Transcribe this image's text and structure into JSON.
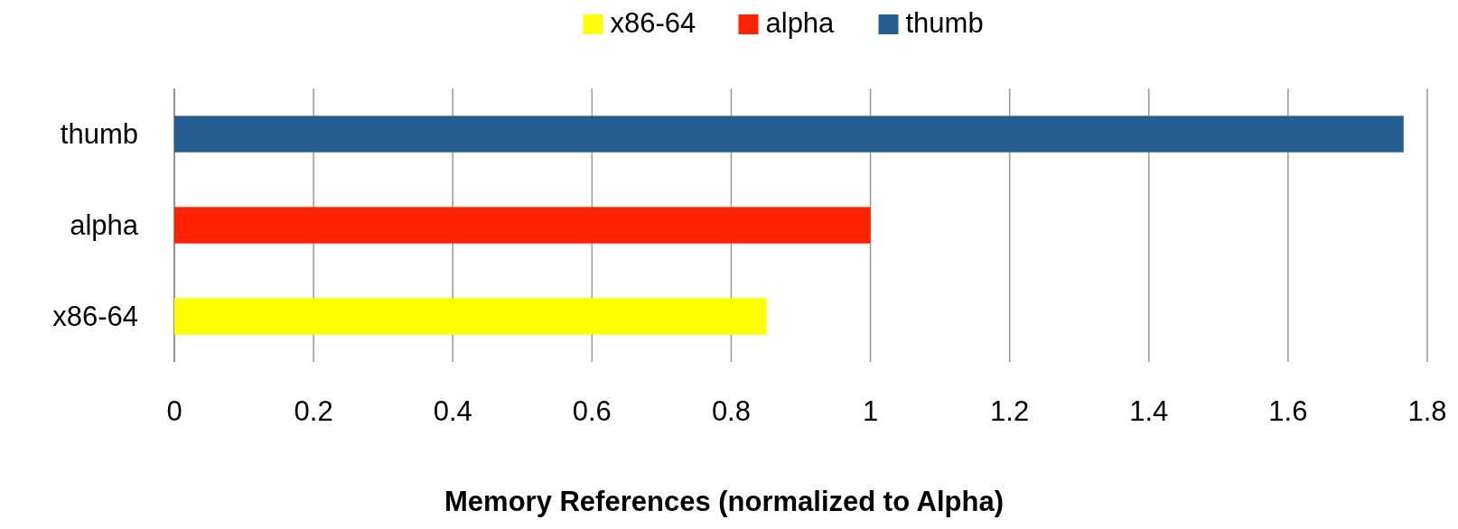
{
  "chart_data": {
    "type": "bar",
    "orientation": "horizontal",
    "categories": [
      "thumb",
      "alpha",
      "x86-64"
    ],
    "series": [
      {
        "name": "x86-64",
        "color": "#ffff00",
        "values": [
          null,
          null,
          0.851
        ]
      },
      {
        "name": "alpha",
        "color": "#ff2200",
        "values": [
          null,
          1.0,
          null
        ]
      },
      {
        "name": "thumb",
        "color": "#275e91",
        "values": [
          1.766,
          null,
          null
        ]
      }
    ],
    "xlim": [
      0,
      1.8
    ],
    "xticks": [
      0,
      0.2,
      0.4,
      0.6,
      0.8,
      1,
      1.2,
      1.4,
      1.6,
      1.8
    ],
    "xlabel": "Memory References (normalized to Alpha)",
    "grid": "x",
    "legend": "top"
  }
}
